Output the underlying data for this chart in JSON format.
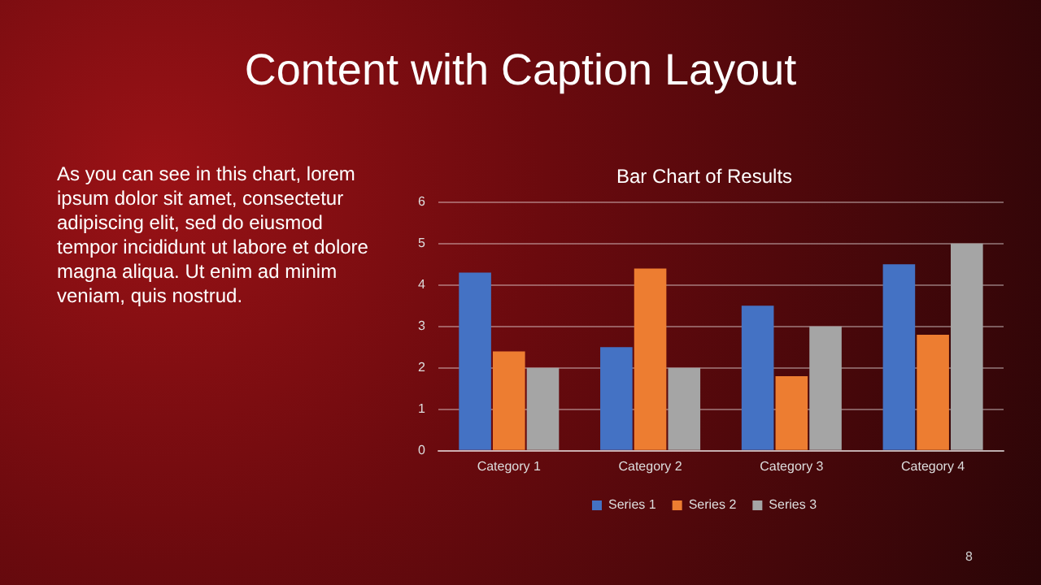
{
  "chart_data": {
    "type": "bar",
    "title": "Content with Caption Layout",
    "subtitle": "Bar Chart of Results",
    "annotations": [
      "As you can see in this chart, lorem ipsum dolor sit amet, consectetur adipiscing elit, sed do eiusmod tempor incididunt ut labore et dolore magna aliqua. Ut enim ad minim veniam, quis nostrud.",
      "8"
    ],
    "categories": [
      "Category 1",
      "Category 2",
      "Category 3",
      "Category 4"
    ],
    "series": [
      {
        "name": "Series 1",
        "color": "#4472c4",
        "values": [
          4.3,
          2.5,
          3.5,
          4.5
        ]
      },
      {
        "name": "Series 2",
        "color": "#ed7d31",
        "values": [
          2.4,
          4.4,
          1.8,
          2.8
        ]
      },
      {
        "name": "Series 3",
        "color": "#a5a5a5",
        "values": [
          2,
          2,
          3,
          5
        ]
      }
    ],
    "ylim": [
      0,
      6
    ],
    "yticks": [
      0,
      1,
      2,
      3,
      4,
      5,
      6
    ],
    "grid": "y",
    "legend": "bottom"
  }
}
